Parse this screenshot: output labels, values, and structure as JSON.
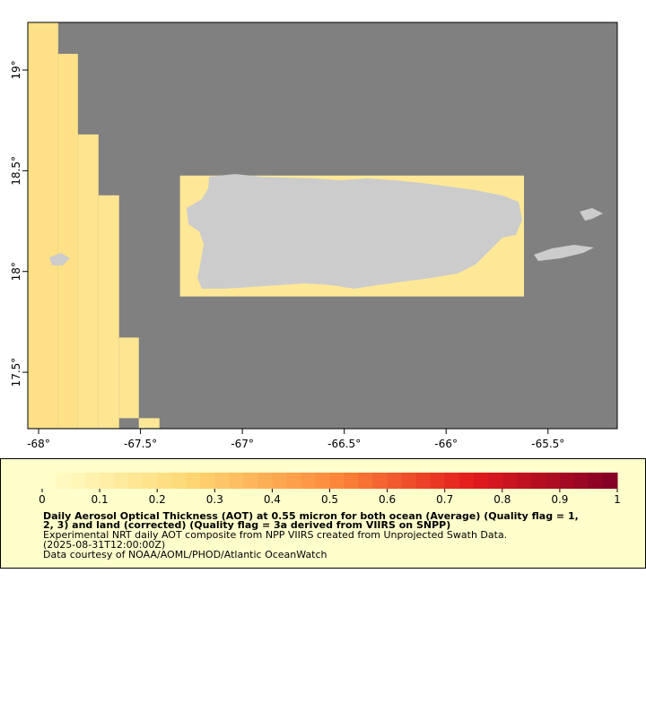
{
  "map": {
    "lonlim": [
      -68.053,
      -65.16
    ],
    "latlim": [
      17.22,
      19.236
    ],
    "lonticks": [
      {
        "value": -68,
        "label": "-68°"
      },
      {
        "value": -67.5,
        "label": "-67.5°"
      },
      {
        "value": -67,
        "label": "-67°"
      },
      {
        "value": -66.5,
        "label": "-66.5°"
      },
      {
        "value": -66,
        "label": "-66°"
      },
      {
        "value": -65.5,
        "label": "-65.5°"
      }
    ],
    "latticks": [
      {
        "value": 19,
        "label": "19°"
      },
      {
        "value": 18.5,
        "label": "18.5°"
      },
      {
        "value": 18,
        "label": "18°"
      },
      {
        "value": 17.5,
        "label": "17.5°"
      }
    ],
    "cells": [
      {
        "lon": [
          -68.053,
          -67.904
        ],
        "lat": [
          17.223,
          19.236
        ],
        "aot": 0.2
      },
      {
        "lon": [
          -67.904,
          -67.807
        ],
        "lat": [
          17.223,
          19.08
        ],
        "aot": 0.2
      },
      {
        "lon": [
          -67.807,
          -67.706
        ],
        "lat": [
          17.223,
          18.68
        ],
        "aot": 0.18
      },
      {
        "lon": [
          -67.706,
          -67.605
        ],
        "lat": [
          17.223,
          18.378
        ],
        "aot": 0.17
      },
      {
        "lon": [
          -67.605,
          -67.508
        ],
        "lat": [
          17.272,
          17.672
        ],
        "aot": 0.17
      },
      {
        "lon": [
          -67.508,
          -67.407
        ],
        "lat": [
          17.223,
          17.272
        ],
        "aot": 0.15
      },
      {
        "lon": [
          -67.306,
          -65.618
        ],
        "lat": [
          17.876,
          18.476
        ],
        "aot": 0.15
      }
    ],
    "colorbar": {
      "lim": [
        0,
        1
      ],
      "ticks": [
        0,
        0.1,
        0.2,
        0.3,
        0.4,
        0.5,
        0.6,
        0.7,
        0.8,
        0.9,
        1
      ]
    },
    "legend": {
      "title": [
        "Daily Aerosol Optical Thickness (AOT) at 0.55 micron for both ocean (Average) (Quality flag = 1,",
        "2, 3) and land (corrected) (Quality flag = 3a derived from VIIRS on SNPP)"
      ],
      "lines": [
        "Experimental NRT daily AOT composite from NPP VIIRS created from Unprojected Swath Data.",
        "(2025-08-31T12:00:00Z)",
        "Data courtesy of NOAA/AOML/PHOD/Atlantic OceanWatch"
      ]
    }
  }
}
